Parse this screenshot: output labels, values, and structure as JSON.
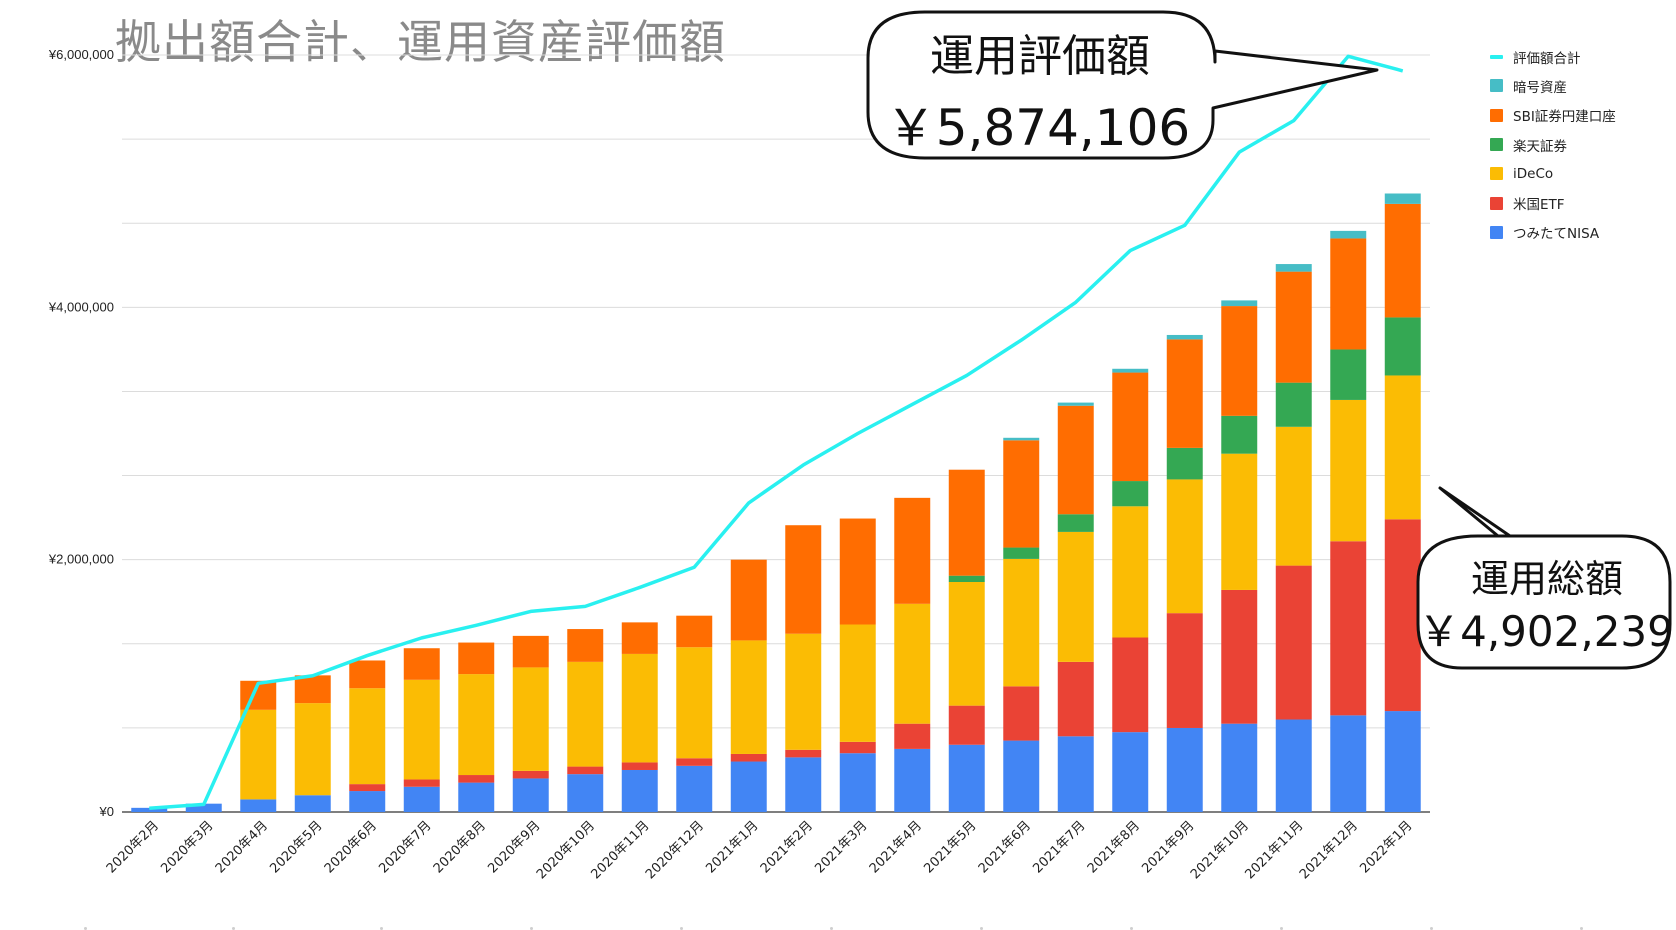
{
  "title": "拠出額合計、運用資産評価額",
  "callouts": {
    "valuation": {
      "title": "運用評価額",
      "value": "￥5,874,106"
    },
    "total": {
      "title": "運用総額",
      "value": "￥4,902,239"
    }
  },
  "chart_data": {
    "type": "bar",
    "stacked": true,
    "title": "拠出額合計、運用資産評価額",
    "xlabel": "",
    "ylabel": "",
    "ylim": [
      0,
      6000000
    ],
    "yticks": [
      "¥0",
      "¥2,000,000",
      "¥4,000,000",
      "¥6,000,000"
    ],
    "grid": true,
    "legend_position": "right",
    "categories": [
      "2020年2月",
      "2020年3月",
      "2020年4月",
      "2020年5月",
      "2020年6月",
      "2020年7月",
      "2020年8月",
      "2020年9月",
      "2020年10月",
      "2020年11月",
      "2020年12月",
      "2021年1月",
      "2021年2月",
      "2021年3月",
      "2021年4月",
      "2021年5月",
      "2021年6月",
      "2021年7月",
      "2021年8月",
      "2021年9月",
      "2021年10月",
      "2021年11月",
      "2021年12月",
      "2022年1月"
    ],
    "series": [
      {
        "name": "つみたてNISA",
        "color": "#4285f4",
        "values": [
          33000,
          66000,
          100000,
          133000,
          166000,
          200000,
          233000,
          266000,
          300000,
          333000,
          366000,
          400000,
          433000,
          466000,
          500000,
          533000,
          566000,
          600000,
          633000,
          666000,
          700000,
          733000,
          766000,
          800000
        ]
      },
      {
        "name": "米国ETF",
        "color": "#ea4335",
        "values": [
          0,
          0,
          0,
          0,
          55000,
          58000,
          60000,
          60000,
          60000,
          60000,
          60000,
          60000,
          60000,
          90000,
          200000,
          310000,
          430000,
          590000,
          750000,
          910000,
          1060000,
          1220000,
          1380000,
          1520000
        ]
      },
      {
        "name": "iDeCo",
        "color": "#fbbc04",
        "values": [
          0,
          0,
          710000,
          730000,
          760000,
          790000,
          800000,
          820000,
          830000,
          860000,
          880000,
          900000,
          920000,
          930000,
          950000,
          980000,
          1010000,
          1030000,
          1040000,
          1060000,
          1080000,
          1100000,
          1120000,
          1140000
        ]
      },
      {
        "name": "楽天証券",
        "color": "#34a853",
        "values": [
          0,
          0,
          0,
          0,
          0,
          0,
          0,
          0,
          0,
          0,
          0,
          0,
          0,
          0,
          0,
          50000,
          90000,
          140000,
          200000,
          250000,
          300000,
          350000,
          400000,
          460000
        ]
      },
      {
        "name": "SBI証券円建口座",
        "color": "#ff6d01",
        "values": [
          0,
          0,
          230000,
          220000,
          220000,
          250000,
          250000,
          250000,
          260000,
          250000,
          250000,
          640000,
          860000,
          840000,
          840000,
          840000,
          850000,
          860000,
          860000,
          860000,
          870000,
          880000,
          880000,
          900000
        ]
      },
      {
        "name": "暗号資産",
        "color": "#46bdc6",
        "values": [
          0,
          0,
          0,
          0,
          0,
          0,
          0,
          0,
          0,
          0,
          0,
          0,
          0,
          0,
          0,
          0,
          20000,
          25000,
          30000,
          35000,
          45000,
          60000,
          60000,
          82239
        ]
      }
    ],
    "line_series": {
      "name": "評価額合計",
      "color": "#29f0f0",
      "values": [
        30000,
        60000,
        1020000,
        1080000,
        1240000,
        1380000,
        1480000,
        1590000,
        1630000,
        1780000,
        1940000,
        2450000,
        2750000,
        3000000,
        3230000,
        3460000,
        3740000,
        4040000,
        4450000,
        4650000,
        5230000,
        5480000,
        5990000,
        5874106
      ]
    }
  }
}
